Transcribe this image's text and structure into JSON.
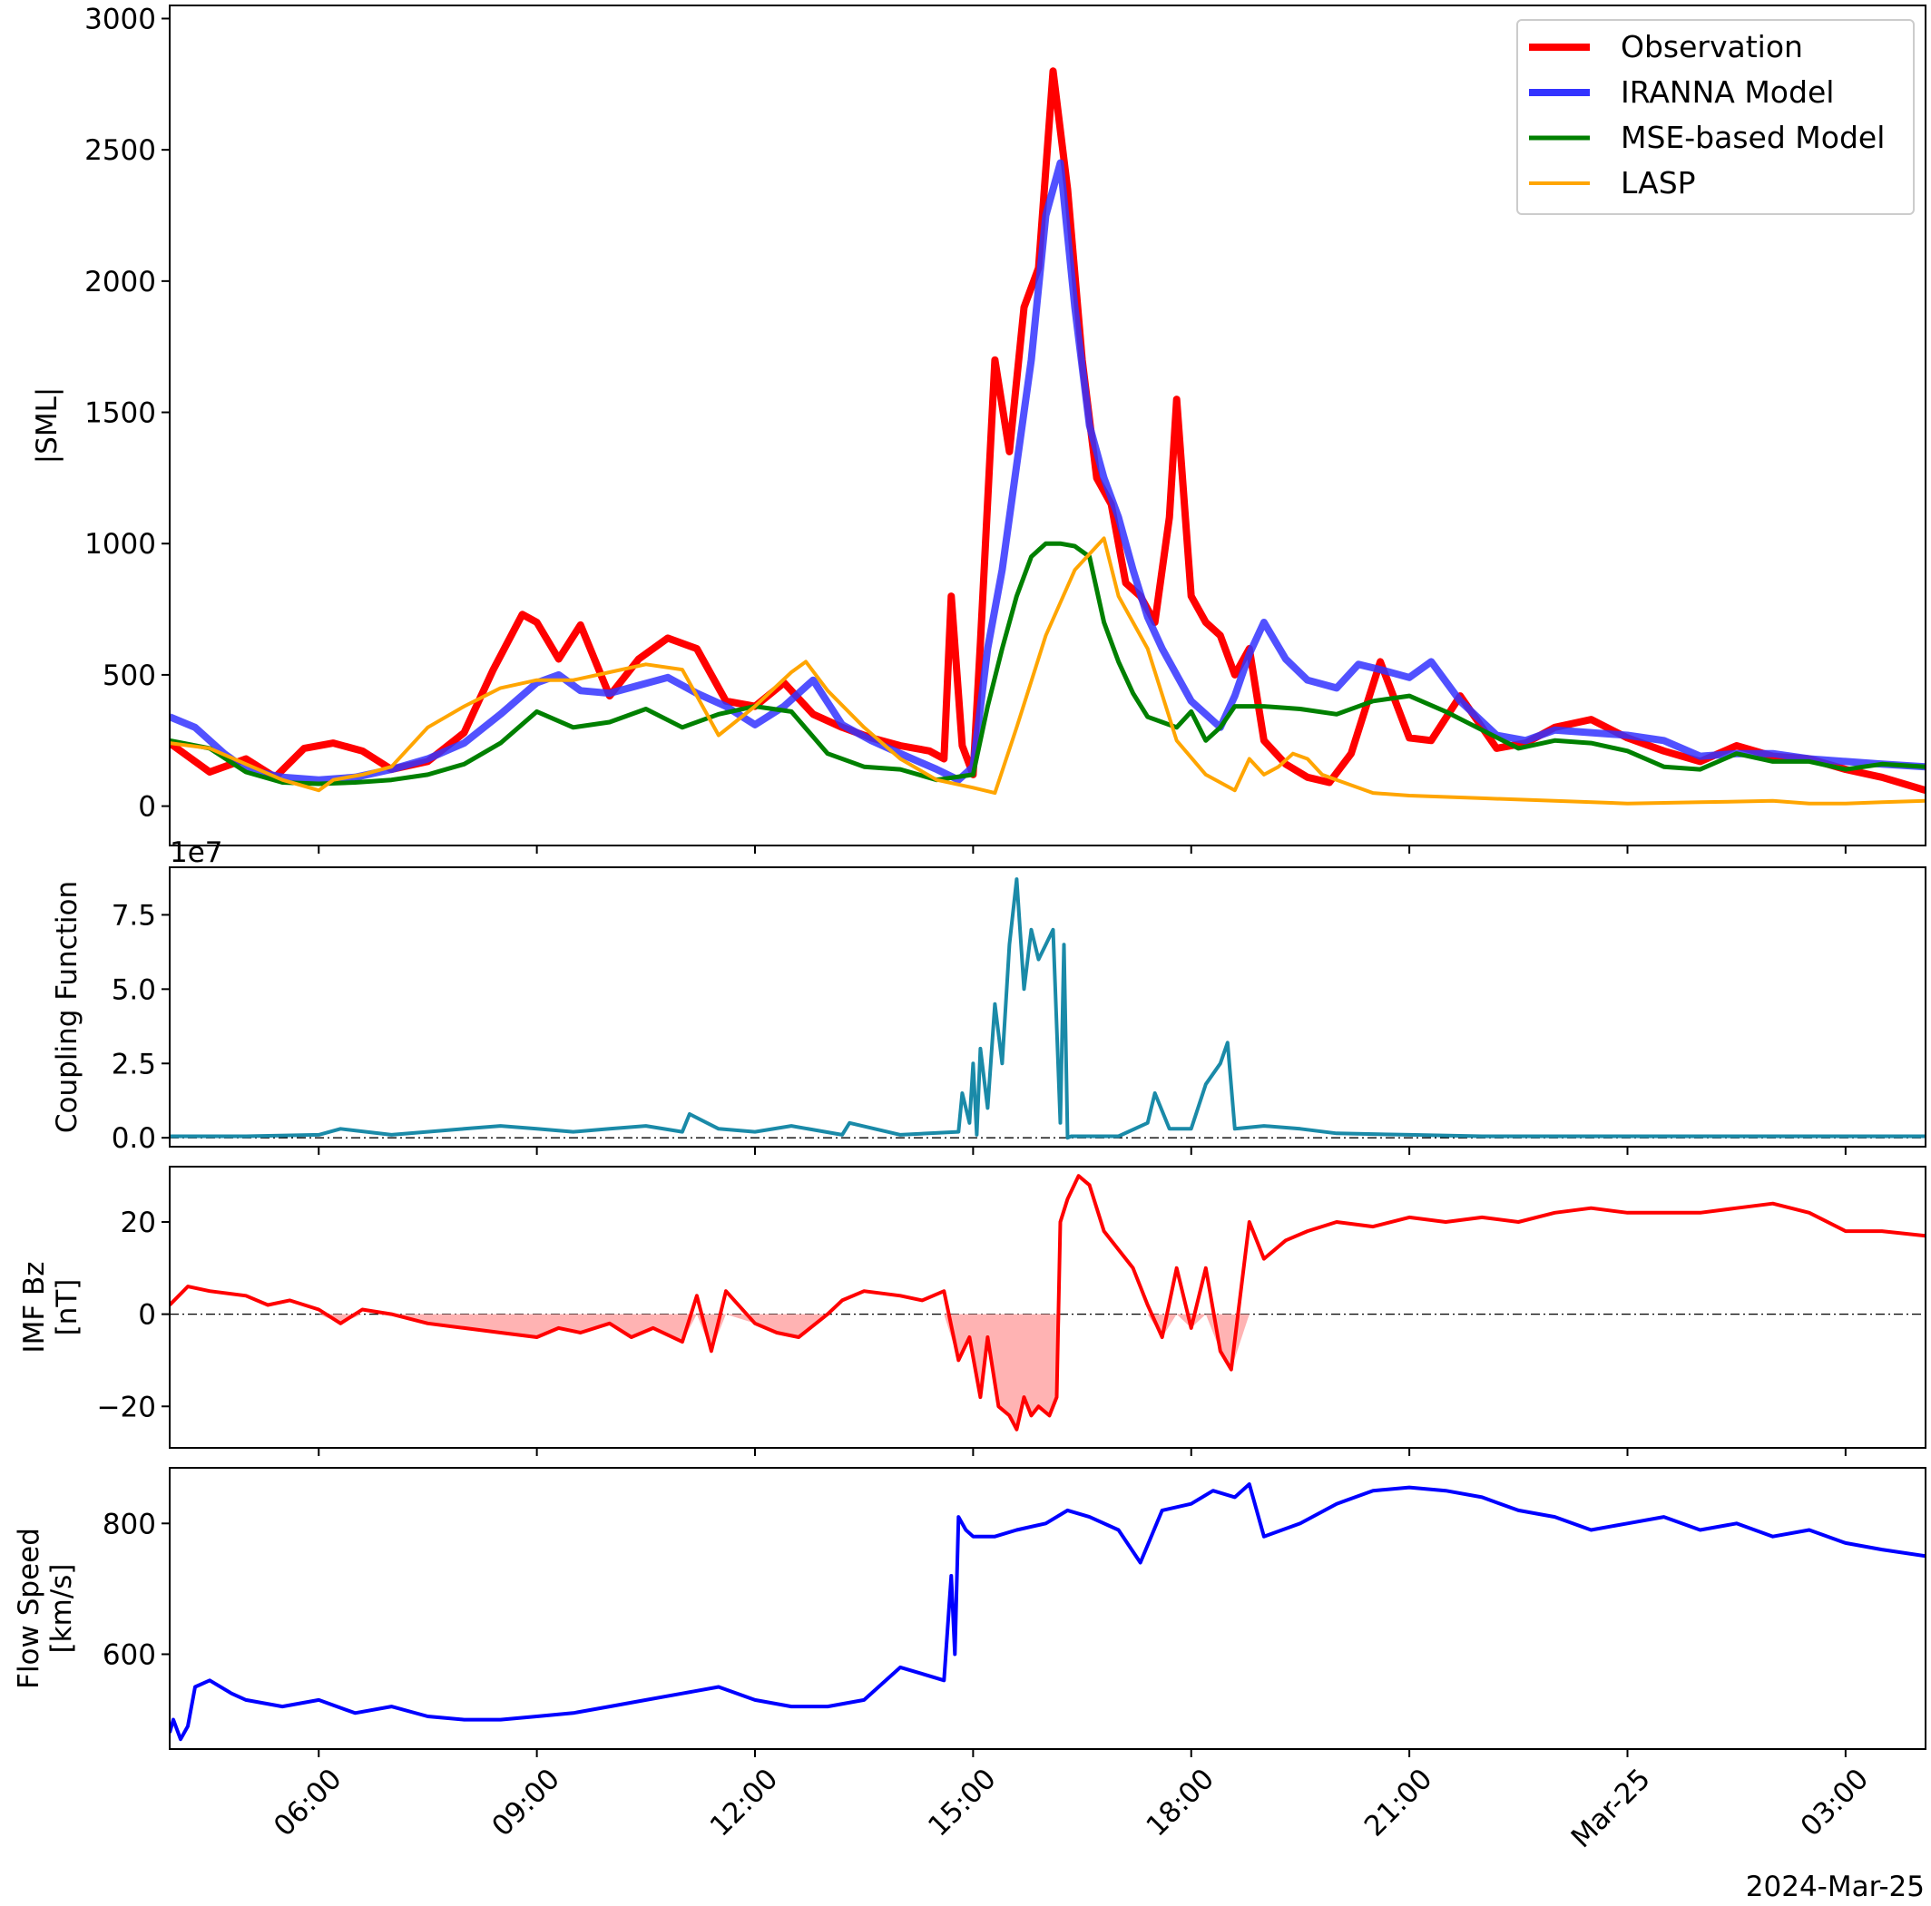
{
  "figure": {
    "date_label": "2024-Mar-25",
    "time_ticks": [
      {
        "hour": 6,
        "label": "06:00"
      },
      {
        "hour": 9,
        "label": "09:00"
      },
      {
        "hour": 12,
        "label": "12:00"
      },
      {
        "hour": 15,
        "label": "15:00"
      },
      {
        "hour": 18,
        "label": "18:00"
      },
      {
        "hour": 21,
        "label": "21:00"
      },
      {
        "hour": 24,
        "label": "Mar-25"
      },
      {
        "hour": 27,
        "label": "03:00"
      }
    ],
    "x_range_hours": [
      3.95,
      28.1
    ]
  },
  "chart_data": [
    {
      "type": "line",
      "title": "",
      "xlabel": "",
      "ylabel": "|SML|",
      "ylim": [
        -150,
        3050
      ],
      "yticks": [
        0,
        500,
        1000,
        1500,
        2000,
        2500,
        3000
      ],
      "ytick_labels": [
        "0",
        "500",
        "1000",
        "1500",
        "2000",
        "2500",
        "3000"
      ],
      "legend_position": "top-right",
      "series": [
        {
          "name": "Observation",
          "color": "#ff0000",
          "x": [
            3.95,
            4.5,
            5,
            5.4,
            5.8,
            6.2,
            6.6,
            7,
            7.5,
            8,
            8.4,
            8.8,
            9,
            9.3,
            9.6,
            10,
            10.4,
            10.8,
            11.2,
            11.6,
            12,
            12.4,
            12.8,
            13.2,
            13.6,
            14,
            14.4,
            14.6,
            14.7,
            14.85,
            15,
            15.1,
            15.3,
            15.5,
            15.7,
            15.9,
            16.1,
            16.3,
            16.5,
            16.7,
            16.9,
            17.1,
            17.3,
            17.5,
            17.7,
            17.8,
            18,
            18.2,
            18.4,
            18.6,
            18.8,
            19,
            19.3,
            19.6,
            19.9,
            20.2,
            20.6,
            21,
            21.3,
            21.7,
            22.2,
            22.6,
            23,
            23.5,
            24,
            24.5,
            25,
            25.5,
            26,
            26.5,
            27,
            27.5,
            28.1
          ],
          "values": [
            240,
            130,
            180,
            110,
            220,
            240,
            210,
            140,
            170,
            280,
            520,
            730,
            700,
            560,
            690,
            420,
            560,
            640,
            600,
            400,
            380,
            470,
            350,
            300,
            260,
            230,
            210,
            180,
            800,
            230,
            120,
            620,
            1700,
            1350,
            1900,
            2050,
            2800,
            2350,
            1700,
            1250,
            1150,
            850,
            800,
            700,
            1100,
            1550,
            800,
            700,
            650,
            500,
            600,
            250,
            160,
            110,
            90,
            200,
            550,
            260,
            250,
            420,
            220,
            240,
            300,
            330,
            260,
            210,
            170,
            230,
            190,
            180,
            140,
            110,
            60
          ]
        },
        {
          "name": "IRANNA Model",
          "color": "#3333ff",
          "x": [
            3.95,
            4.3,
            4.7,
            5,
            5.5,
            6,
            6.5,
            7,
            7.5,
            8,
            8.5,
            9,
            9.3,
            9.6,
            10,
            10.4,
            10.8,
            11.2,
            11.6,
            12,
            12.4,
            12.8,
            13.2,
            13.6,
            14,
            14.5,
            14.8,
            15,
            15.2,
            15.4,
            15.6,
            15.8,
            16,
            16.2,
            16.4,
            16.6,
            16.8,
            17,
            17.2,
            17.4,
            17.6,
            17.8,
            18,
            18.2,
            18.4,
            18.6,
            18.8,
            19,
            19.3,
            19.6,
            20,
            20.3,
            20.6,
            21,
            21.3,
            21.7,
            22.2,
            22.6,
            23,
            23.5,
            24,
            24.5,
            25,
            25.5,
            26,
            26.5,
            27,
            27.5,
            28.1
          ],
          "values": [
            340,
            300,
            200,
            140,
            110,
            100,
            110,
            140,
            180,
            240,
            350,
            470,
            500,
            440,
            430,
            460,
            490,
            430,
            380,
            310,
            380,
            480,
            310,
            250,
            200,
            140,
            100,
            150,
            600,
            900,
            1300,
            1700,
            2250,
            2450,
            1900,
            1450,
            1250,
            1100,
            900,
            720,
            600,
            500,
            400,
            350,
            300,
            420,
            580,
            700,
            560,
            480,
            450,
            540,
            520,
            490,
            550,
            400,
            270,
            250,
            290,
            280,
            270,
            250,
            190,
            200,
            200,
            180,
            170,
            160,
            150
          ]
        },
        {
          "name": "MSE-based Model",
          "color": "#008000",
          "x": [
            3.95,
            4.5,
            5,
            5.5,
            6,
            6.5,
            7,
            7.5,
            8,
            8.5,
            9,
            9.5,
            10,
            10.5,
            11,
            11.5,
            12,
            12.5,
            13,
            13.5,
            14,
            14.5,
            15,
            15.2,
            15.4,
            15.6,
            15.8,
            16,
            16.2,
            16.4,
            16.6,
            16.8,
            17,
            17.2,
            17.4,
            17.6,
            17.8,
            18,
            18.2,
            18.4,
            18.6,
            18.8,
            19,
            19.5,
            20,
            20.5,
            21,
            21.5,
            22,
            22.5,
            23,
            23.5,
            24,
            24.5,
            25,
            25.5,
            26,
            26.5,
            27,
            27.5,
            28.1
          ],
          "values": [
            250,
            220,
            130,
            90,
            85,
            90,
            100,
            120,
            160,
            240,
            360,
            300,
            320,
            370,
            300,
            350,
            380,
            360,
            200,
            150,
            140,
            100,
            120,
            380,
            600,
            800,
            950,
            1000,
            1000,
            990,
            950,
            700,
            550,
            430,
            340,
            320,
            300,
            360,
            250,
            300,
            380,
            380,
            380,
            370,
            350,
            400,
            420,
            360,
            290,
            220,
            250,
            240,
            210,
            150,
            140,
            200,
            170,
            170,
            140,
            160,
            150
          ]
        },
        {
          "name": "LASP",
          "color": "#ffa500",
          "x": [
            3.95,
            4.5,
            5,
            5.5,
            6,
            6.2,
            6.6,
            7,
            7.5,
            8,
            8.5,
            9,
            9.5,
            10,
            10.5,
            11,
            11.5,
            12,
            12.5,
            12.7,
            13,
            13.5,
            14,
            14.5,
            15,
            15.3,
            15.6,
            16,
            16.4,
            16.8,
            17,
            17.4,
            17.8,
            18.2,
            18.6,
            18.8,
            19,
            19.2,
            19.4,
            19.6,
            19.8,
            20,
            20.5,
            21,
            22,
            23,
            24,
            25,
            26,
            26.5,
            27,
            27.5,
            28.1
          ],
          "values": [
            240,
            220,
            160,
            100,
            60,
            100,
            120,
            150,
            300,
            380,
            450,
            480,
            480,
            510,
            540,
            520,
            270,
            380,
            510,
            550,
            440,
            300,
            180,
            100,
            70,
            50,
            300,
            650,
            900,
            1020,
            800,
            600,
            250,
            120,
            60,
            180,
            120,
            150,
            200,
            180,
            120,
            100,
            50,
            40,
            30,
            20,
            10,
            15,
            20,
            10,
            10,
            15,
            20
          ]
        }
      ]
    },
    {
      "type": "line",
      "title": "",
      "xlabel": "",
      "ylabel": "Coupling Function",
      "offset_label": "1e7",
      "ylim": [
        -0.3,
        9.1
      ],
      "yticks": [
        0,
        2.5,
        5,
        7.5
      ],
      "ytick_labels": [
        "0.0",
        "2.5",
        "5.0",
        "7.5"
      ],
      "series": [
        {
          "name": "Coupling Function",
          "color": "#1a8aa8",
          "x": [
            3.95,
            5,
            6,
            6.3,
            7,
            8,
            8.5,
            9,
            9.5,
            10,
            10.5,
            11,
            11.1,
            11.5,
            12,
            12.5,
            13.2,
            13.3,
            14,
            14.8,
            14.85,
            14.95,
            15,
            15.05,
            15.1,
            15.2,
            15.3,
            15.4,
            15.5,
            15.6,
            15.7,
            15.8,
            15.9,
            16,
            16.1,
            16.2,
            16.25,
            16.3,
            16.35,
            17,
            17.4,
            17.5,
            17.7,
            18,
            18.2,
            18.4,
            18.5,
            18.6,
            19,
            19.5,
            20,
            21,
            22,
            23,
            24,
            25,
            26,
            27,
            28.1
          ],
          "values": [
            0.05,
            0.05,
            0.1,
            0.3,
            0.1,
            0.3,
            0.4,
            0.3,
            0.2,
            0.3,
            0.4,
            0.2,
            0.8,
            0.3,
            0.2,
            0.4,
            0.1,
            0.5,
            0.1,
            0.2,
            1.5,
            0.5,
            2.5,
            0.1,
            3,
            1,
            4.5,
            2.5,
            6.5,
            8.7,
            5,
            7,
            6,
            6.5,
            7,
            0.5,
            6.5,
            0,
            0.05,
            0.05,
            0.5,
            1.5,
            0.3,
            0.3,
            1.8,
            2.5,
            3.2,
            0.3,
            0.4,
            0.3,
            0.15,
            0.1,
            0.05,
            0.05,
            0.05,
            0.05,
            0.05,
            0.05,
            0.05
          ]
        }
      ]
    },
    {
      "type": "area",
      "title": "",
      "xlabel": "",
      "ylabel": "IMF Bz\n[nT]",
      "ylim": [
        -29,
        32
      ],
      "yticks": [
        -20,
        0,
        20
      ],
      "ytick_labels": [
        "−20",
        "0",
        "20"
      ],
      "fill_negative_color": "#ffb3b3",
      "series": [
        {
          "name": "IMF Bz",
          "color": "#ff0000",
          "x": [
            3.95,
            4.2,
            4.5,
            5,
            5.3,
            5.6,
            6,
            6.3,
            6.6,
            7,
            7.5,
            8,
            8.5,
            9,
            9.3,
            9.6,
            10,
            10.3,
            10.6,
            11,
            11.2,
            11.4,
            11.6,
            12,
            12.3,
            12.6,
            13,
            13.2,
            13.5,
            14,
            14.3,
            14.6,
            14.8,
            14.95,
            15.1,
            15.2,
            15.35,
            15.5,
            15.6,
            15.7,
            15.8,
            15.9,
            16.05,
            16.15,
            16.2,
            16.3,
            16.45,
            16.6,
            16.8,
            17,
            17.2,
            17.4,
            17.6,
            17.8,
            18,
            18.2,
            18.4,
            18.55,
            18.8,
            19,
            19.3,
            19.6,
            20,
            20.5,
            21,
            21.5,
            22,
            22.5,
            23,
            23.5,
            24,
            24.5,
            25,
            25.5,
            26,
            26.5,
            27,
            27.5,
            28.1
          ],
          "values": [
            2,
            6,
            5,
            4,
            2,
            3,
            1,
            -2,
            1,
            0,
            -2,
            -3,
            -4,
            -5,
            -3,
            -4,
            -2,
            -5,
            -3,
            -6,
            4,
            -8,
            5,
            -2,
            -4,
            -5,
            0,
            3,
            5,
            4,
            3,
            5,
            -10,
            -5,
            -18,
            -5,
            -20,
            -22,
            -25,
            -18,
            -22,
            -20,
            -22,
            -18,
            20,
            25,
            30,
            28,
            18,
            14,
            10,
            2,
            -5,
            10,
            -3,
            10,
            -8,
            -12,
            20,
            12,
            16,
            18,
            20,
            19,
            21,
            20,
            21,
            20,
            22,
            23,
            22,
            22,
            22,
            23,
            24,
            22,
            18,
            18,
            17
          ]
        }
      ]
    },
    {
      "type": "line",
      "title": "",
      "xlabel": "",
      "ylabel": "Flow Speed\n[km/s]",
      "ylim": [
        455,
        885
      ],
      "yticks": [
        600,
        800
      ],
      "ytick_labels": [
        "600",
        "800"
      ],
      "series": [
        {
          "name": "Flow Speed",
          "color": "#0000ff",
          "x": [
            3.95,
            4,
            4.1,
            4.2,
            4.3,
            4.5,
            4.8,
            5,
            5.5,
            6,
            6.5,
            7,
            7.5,
            8,
            8.5,
            9,
            9.5,
            10,
            10.5,
            11,
            11.5,
            12,
            12.5,
            13,
            13.5,
            14,
            14.3,
            14.6,
            14.7,
            14.75,
            14.8,
            14.9,
            15,
            15.3,
            15.6,
            16,
            16.3,
            16.6,
            17,
            17.3,
            17.6,
            18,
            18.3,
            18.6,
            18.8,
            19,
            19.5,
            20,
            20.5,
            21,
            21.5,
            22,
            22.5,
            23,
            23.5,
            24,
            24.5,
            25,
            25.5,
            26,
            26.5,
            27,
            27.5,
            28.1
          ],
          "values": [
            480,
            500,
            470,
            490,
            550,
            560,
            540,
            530,
            520,
            530,
            510,
            520,
            505,
            500,
            500,
            505,
            510,
            520,
            530,
            540,
            550,
            530,
            520,
            520,
            530,
            580,
            570,
            560,
            720,
            600,
            810,
            790,
            780,
            780,
            790,
            800,
            820,
            810,
            790,
            740,
            820,
            830,
            850,
            840,
            860,
            780,
            800,
            830,
            850,
            855,
            850,
            840,
            820,
            810,
            790,
            800,
            810,
            790,
            800,
            780,
            790,
            770,
            760,
            750
          ]
        }
      ]
    }
  ]
}
